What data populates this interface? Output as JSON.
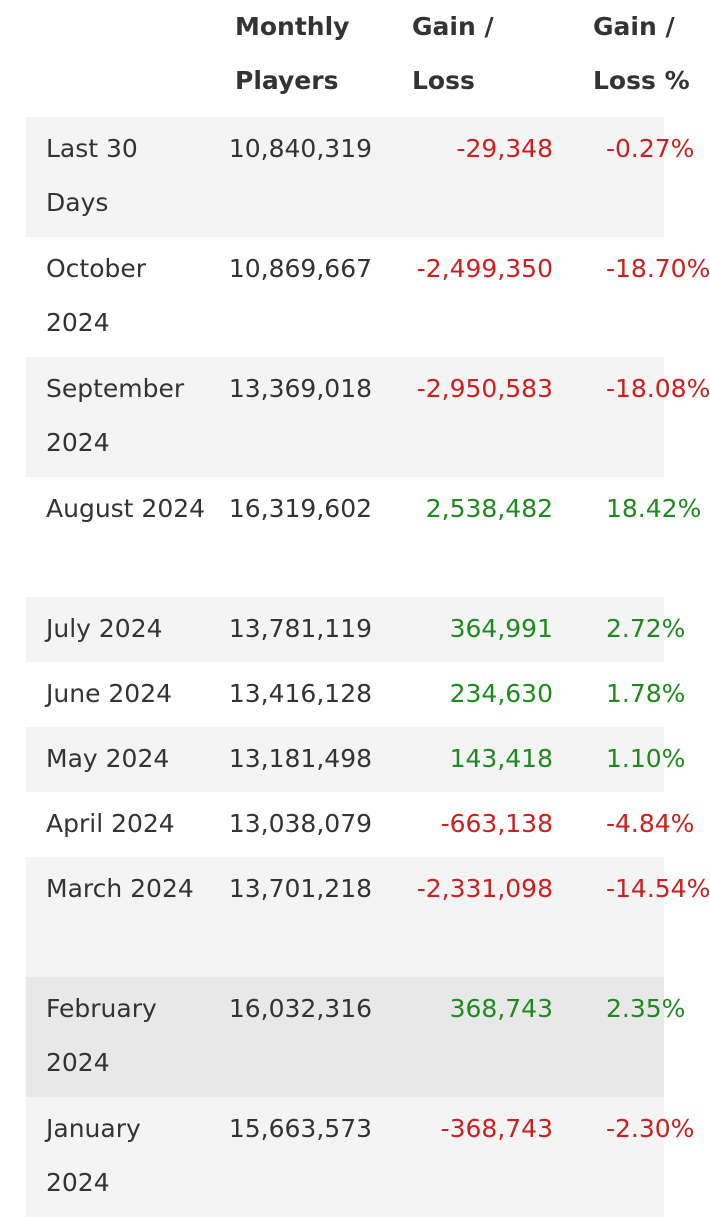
{
  "header": {
    "players_line1": "Monthly",
    "players_line2": "Players",
    "gain_line1": "Gain /",
    "gain_line2": "Loss",
    "pct_line1": "Gain /",
    "pct_line2": "Loss %"
  },
  "colors": {
    "negative": "#cc1f1f",
    "positive": "#1e8a1e",
    "stripe": "#f4f4f4",
    "hover": "#e8e8e8"
  },
  "rows": [
    {
      "month": "Last 30 Days",
      "players": "10,840,319",
      "gain": "-29,348",
      "pct": "-0.27%",
      "sign": "neg",
      "tall": true
    },
    {
      "month": "October 2024",
      "players": "10,869,667",
      "gain": "-2,499,350",
      "pct": "-18.70%",
      "sign": "neg",
      "tall": true
    },
    {
      "month": "September 2024",
      "players": "13,369,018",
      "gain": "-2,950,583",
      "pct": "-18.08%",
      "sign": "neg",
      "tall": true
    },
    {
      "month": "August 2024",
      "players": "16,319,602",
      "gain": "2,538,482",
      "pct": "18.42%",
      "sign": "pos",
      "tall": true
    },
    {
      "month": "July 2024",
      "players": "13,781,119",
      "gain": "364,991",
      "pct": "2.72%",
      "sign": "pos",
      "tall": false
    },
    {
      "month": "June 2024",
      "players": "13,416,128",
      "gain": "234,630",
      "pct": "1.78%",
      "sign": "pos",
      "tall": false
    },
    {
      "month": "May 2024",
      "players": "13,181,498",
      "gain": "143,418",
      "pct": "1.10%",
      "sign": "pos",
      "tall": false
    },
    {
      "month": "April 2024",
      "players": "13,038,079",
      "gain": "-663,138",
      "pct": "-4.84%",
      "sign": "neg",
      "tall": false
    },
    {
      "month": "March 2024",
      "players": "13,701,218",
      "gain": "-2,331,098",
      "pct": "-14.54%",
      "sign": "neg",
      "tall": true
    },
    {
      "month": "February 2024",
      "players": "16,032,316",
      "gain": "368,743",
      "pct": "2.35%",
      "sign": "pos",
      "tall": true,
      "hover": true
    },
    {
      "month": "January 2024",
      "players": "15,663,573",
      "gain": "-368,743",
      "pct": "-2.30%",
      "sign": "neg",
      "tall": true
    }
  ]
}
